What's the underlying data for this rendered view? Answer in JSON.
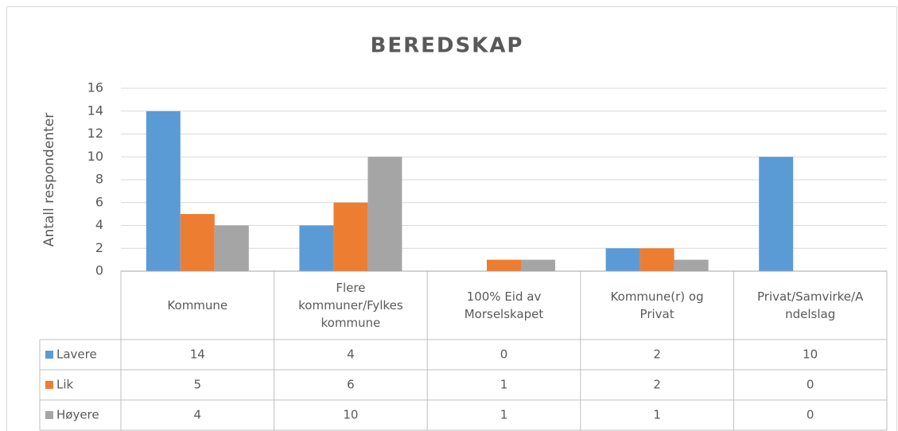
{
  "chart_data": {
    "type": "bar",
    "title": "BEREDSKAP",
    "y_label": "Antall respondenter",
    "categories": [
      "Kommune",
      "Flere kommuner/Fylkeskommune",
      "100% Eid av Morselskapet",
      "Kommune(r) og Privat",
      "Privat/Samvirke/Andelslag"
    ],
    "series": [
      {
        "name": "Lavere",
        "color": "#5b9bd5",
        "values": [
          14,
          4,
          0,
          2,
          10
        ]
      },
      {
        "name": "Lik",
        "color": "#ed7d31",
        "values": [
          5,
          6,
          1,
          2,
          0
        ]
      },
      {
        "name": "Høyere",
        "color": "#a5a5a5",
        "values": [
          4,
          10,
          1,
          1,
          0
        ]
      }
    ],
    "ylim": [
      0,
      16
    ],
    "yticks": [
      0,
      2,
      4,
      6,
      8,
      10,
      12,
      14,
      16
    ],
    "grid": true,
    "data_table": true
  }
}
